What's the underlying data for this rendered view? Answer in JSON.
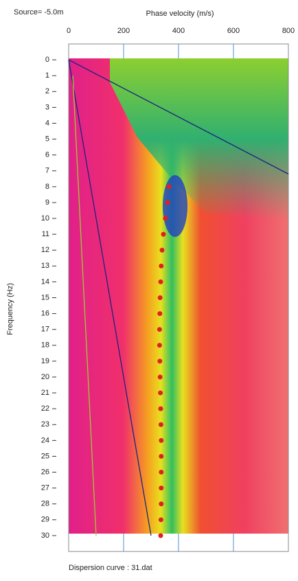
{
  "chart_data": {
    "type": "scatter",
    "title": "Source= -5.0m",
    "xlabel": "Phase velocity (m/s)",
    "ylabel": "Frequency (Hz)",
    "footer": "Dispersion curve : 31.dat",
    "xlim": [
      0,
      800
    ],
    "xticks": [
      0,
      200,
      400,
      600,
      800
    ],
    "ylim": [
      -1,
      31
    ],
    "yticks": [
      0,
      1,
      2,
      3,
      4,
      5,
      6,
      7,
      8,
      9,
      10,
      11,
      12,
      13,
      14,
      15,
      16,
      17,
      18,
      19,
      20,
      21,
      22,
      23,
      24,
      25,
      26,
      27,
      28,
      29,
      30
    ],
    "y_inverted": true,
    "grid": true,
    "grid_color": "#4a90d9",
    "curve": {
      "color": "#e02020",
      "x": [
        365,
        360,
        352,
        345,
        340,
        337,
        335,
        333,
        332,
        331,
        331,
        332,
        333,
        334,
        335,
        336,
        337,
        337,
        337,
        337,
        337,
        336,
        335
      ],
      "y": [
        8,
        9,
        10,
        11,
        12,
        13,
        14,
        15,
        16,
        17,
        18,
        19,
        20,
        21,
        22,
        23,
        24,
        25,
        26,
        27,
        28,
        29,
        30
      ]
    },
    "lines": [
      {
        "color": "#1a237e",
        "x": [
          0,
          800
        ],
        "y": [
          0,
          7.2
        ]
      },
      {
        "color": "#1a237e",
        "x": [
          0,
          300
        ],
        "y": [
          0,
          30
        ]
      },
      {
        "color": "#9acd32",
        "x": [
          15,
          100
        ],
        "y": [
          1,
          30
        ]
      }
    ]
  }
}
